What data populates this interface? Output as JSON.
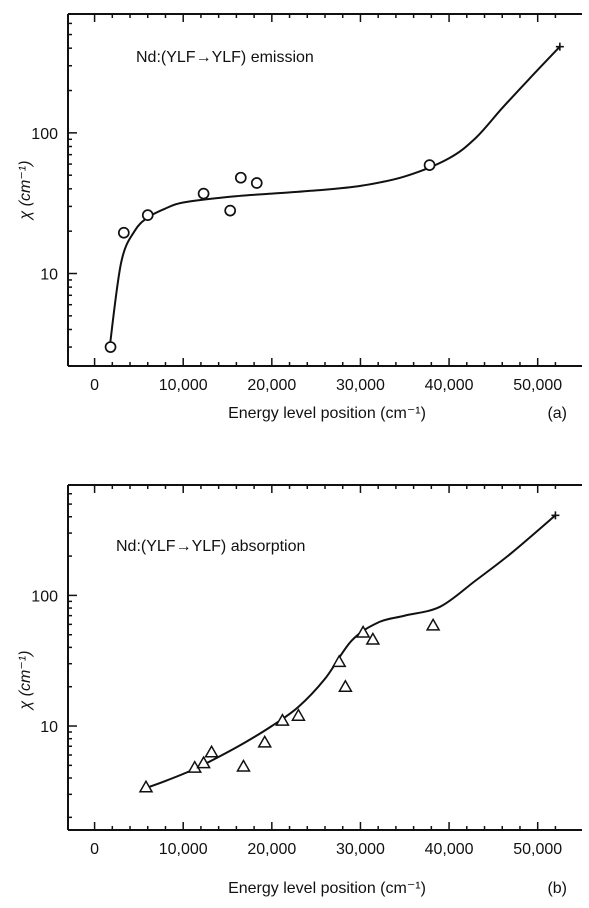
{
  "chart_data": [
    {
      "type": "scatter",
      "panel_label": "(a)",
      "title": "Nd:(YLF→YLF) emission",
      "xlabel": "Energy level position (cm⁻¹)",
      "ylabel": "χ (cm⁻¹)",
      "y_scale": "log",
      "xlim": [
        -3000,
        55000
      ],
      "ylim": [
        2.2,
        700
      ],
      "x_ticks": [
        0,
        10000,
        20000,
        30000,
        40000,
        50000
      ],
      "x_tick_labels": [
        "0",
        "10,000",
        "20,000",
        "30,000",
        "40,000",
        "50,000"
      ],
      "y_ticks": [
        10,
        100
      ],
      "y_tick_labels": [
        "10",
        "100"
      ],
      "marker": "circle",
      "points": {
        "x": [
          1800,
          3300,
          6000,
          12300,
          15300,
          16500,
          18300,
          37800
        ],
        "y": [
          3.0,
          19.5,
          26,
          37,
          28,
          48,
          44,
          59
        ]
      },
      "fit_curve": {
        "x": [
          1700,
          3000,
          4500,
          6000,
          8000,
          10000,
          15000,
          20000,
          25000,
          30000,
          35000,
          40000,
          43000,
          46000,
          49000,
          52500
        ],
        "y": [
          3.0,
          12,
          20,
          25,
          29,
          32,
          35,
          37,
          39,
          42,
          49,
          66,
          92,
          150,
          240,
          410
        ]
      },
      "end_marker": {
        "x": 52500,
        "y": 410
      }
    },
    {
      "type": "scatter",
      "panel_label": "(b)",
      "title": "Nd:(YLF→YLF) absorption",
      "xlabel": "Energy level position (cm⁻¹)",
      "ylabel": "χ (cm⁻¹)",
      "y_scale": "log",
      "xlim": [
        -3000,
        55000
      ],
      "ylim": [
        1.6,
        700
      ],
      "x_ticks": [
        0,
        10000,
        20000,
        30000,
        40000,
        50000
      ],
      "x_tick_labels": [
        "0",
        "10,000",
        "20,000",
        "30,000",
        "40,000",
        "50,000"
      ],
      "y_ticks": [
        10,
        100
      ],
      "y_tick_labels": [
        "10",
        "100"
      ],
      "marker": "triangle",
      "points": {
        "x": [
          5800,
          11300,
          12300,
          13200,
          16800,
          19200,
          21200,
          23000,
          27600,
          28300,
          30300,
          31400,
          38200
        ],
        "y": [
          3.4,
          4.8,
          5.2,
          6.3,
          4.9,
          7.5,
          11,
          12,
          31,
          20,
          52,
          46,
          59
        ]
      },
      "fit_curve": {
        "x": [
          5500,
          8000,
          11000,
          14000,
          17000,
          20000,
          23000,
          26000,
          29000,
          32000,
          35000,
          39000,
          43000,
          47000,
          52000
        ],
        "y": [
          3.3,
          3.8,
          4.6,
          5.8,
          7.5,
          10,
          14,
          23,
          45,
          62,
          70,
          82,
          130,
          210,
          410
        ]
      },
      "end_marker": {
        "x": 52000,
        "y": 410
      }
    }
  ]
}
